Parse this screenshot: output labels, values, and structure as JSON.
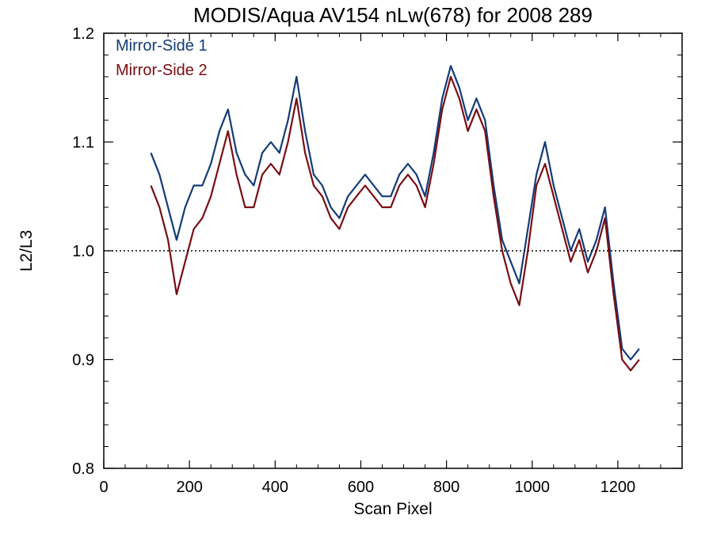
{
  "chart_data": {
    "type": "line",
    "title": "MODIS/Aqua AV154 nLw(678) for 2008 289",
    "xlabel": "Scan Pixel",
    "ylabel": "L2/L3",
    "xlim": [
      0,
      1350
    ],
    "ylim": [
      0.8,
      1.2
    ],
    "x_ticks": [
      0,
      200,
      400,
      600,
      800,
      1000,
      1200
    ],
    "x_tick_labels": [
      "0",
      "200",
      "400",
      "600",
      "800",
      "1000",
      "1200"
    ],
    "y_ticks": [
      0.8,
      0.9,
      1.0,
      1.1,
      1.2
    ],
    "y_tick_labels": [
      "0.8",
      "0.9",
      "1.0",
      "1.1",
      "1.2"
    ],
    "reference_line": {
      "y": 1.0,
      "style": "dotted"
    },
    "grid": false,
    "legend": {
      "position": "top-left",
      "entries": [
        "Mirror-Side 1",
        "Mirror-Side 2"
      ]
    },
    "colors": {
      "Mirror-Side 1": "#123b7a",
      "Mirror-Side 2": "#7a0d12"
    },
    "x": [
      110,
      130,
      150,
      170,
      190,
      210,
      230,
      250,
      270,
      290,
      310,
      330,
      350,
      370,
      390,
      410,
      430,
      450,
      470,
      490,
      510,
      530,
      550,
      570,
      590,
      610,
      630,
      650,
      670,
      690,
      710,
      730,
      750,
      770,
      790,
      810,
      830,
      850,
      870,
      890,
      910,
      930,
      950,
      970,
      990,
      1010,
      1030,
      1050,
      1070,
      1090,
      1110,
      1130,
      1150,
      1170,
      1190,
      1210,
      1230,
      1250
    ],
    "series": [
      {
        "name": "Mirror-Side 1",
        "values": [
          1.09,
          1.07,
          1.04,
          1.01,
          1.04,
          1.06,
          1.06,
          1.08,
          1.11,
          1.13,
          1.09,
          1.07,
          1.06,
          1.09,
          1.1,
          1.09,
          1.12,
          1.16,
          1.11,
          1.07,
          1.06,
          1.04,
          1.03,
          1.05,
          1.06,
          1.07,
          1.06,
          1.05,
          1.05,
          1.07,
          1.08,
          1.07,
          1.05,
          1.09,
          1.14,
          1.17,
          1.15,
          1.12,
          1.14,
          1.12,
          1.06,
          1.01,
          0.99,
          0.97,
          1.02,
          1.07,
          1.1,
          1.06,
          1.03,
          1.0,
          1.02,
          0.99,
          1.01,
          1.04,
          0.97,
          0.91,
          0.9,
          0.91
        ]
      },
      {
        "name": "Mirror-Side 2",
        "values": [
          1.06,
          1.04,
          1.01,
          0.96,
          0.99,
          1.02,
          1.03,
          1.05,
          1.08,
          1.11,
          1.07,
          1.04,
          1.04,
          1.07,
          1.08,
          1.07,
          1.1,
          1.14,
          1.09,
          1.06,
          1.05,
          1.03,
          1.02,
          1.04,
          1.05,
          1.06,
          1.05,
          1.04,
          1.04,
          1.06,
          1.07,
          1.06,
          1.04,
          1.08,
          1.13,
          1.16,
          1.14,
          1.11,
          1.13,
          1.11,
          1.05,
          1.0,
          0.97,
          0.95,
          1.0,
          1.06,
          1.08,
          1.05,
          1.02,
          0.99,
          1.01,
          0.98,
          1.0,
          1.03,
          0.96,
          0.9,
          0.89,
          0.9
        ]
      }
    ]
  }
}
